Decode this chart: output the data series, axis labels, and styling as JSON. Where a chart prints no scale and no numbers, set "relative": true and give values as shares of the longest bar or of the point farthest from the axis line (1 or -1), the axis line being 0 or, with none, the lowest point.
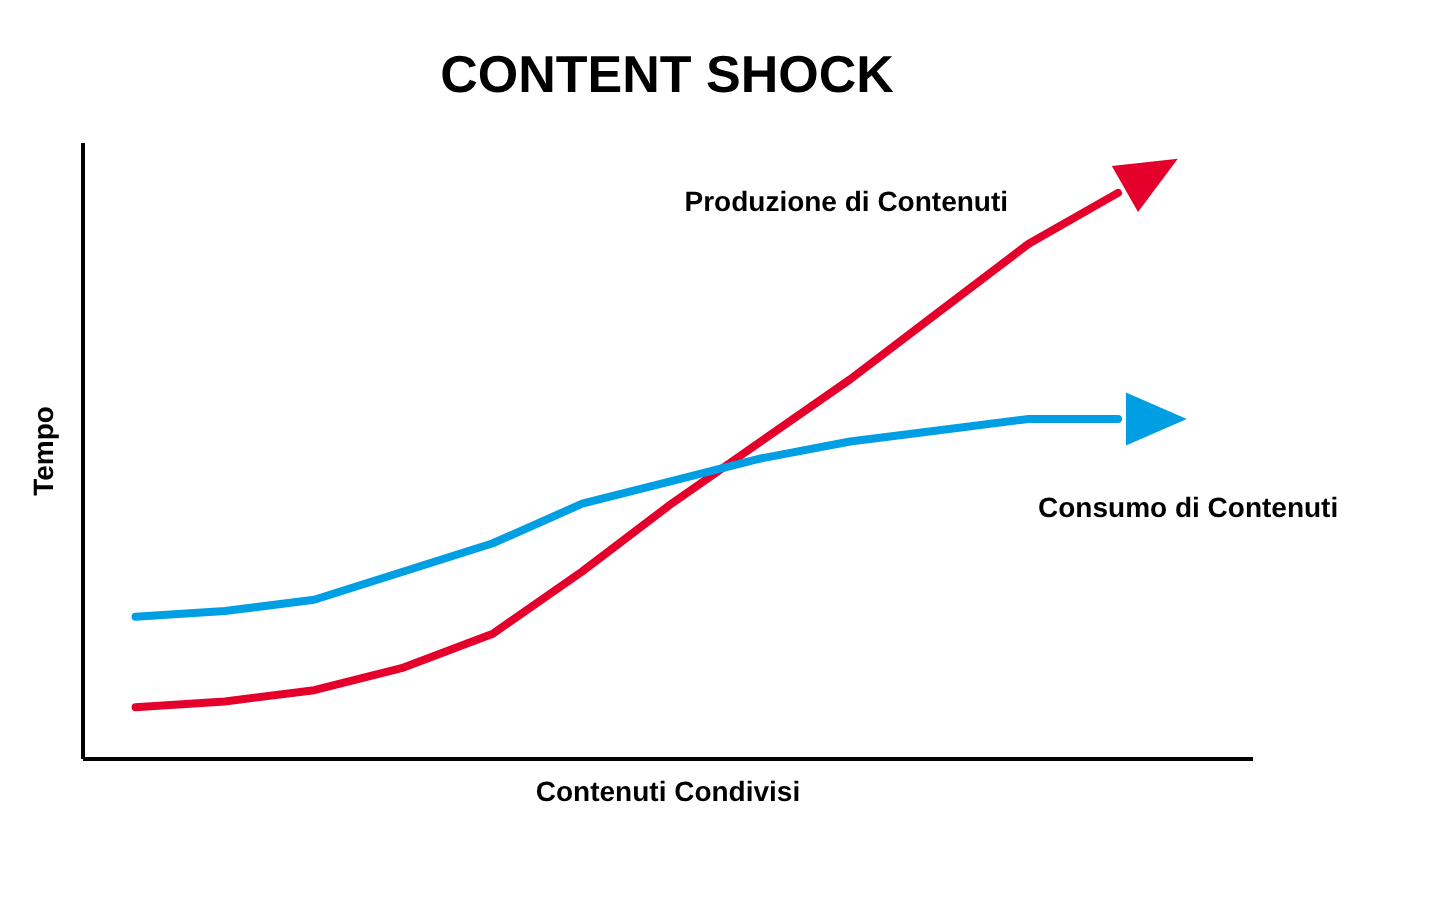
{
  "chart_data": {
    "type": "line",
    "title": "CONTENT SHOCK",
    "xlabel": "Contenuti Condivisi",
    "ylabel": "Tempo",
    "relative": true,
    "legend": false,
    "grid": false,
    "marker": "none",
    "line_style": "solid",
    "categories": [
      null,
      null,
      null,
      null,
      null,
      null,
      null,
      null,
      null,
      null,
      null,
      null
    ],
    "series": [
      {
        "name": "Produzione di Contenuti",
        "color": "#e4002b",
        "values": [
          0.09,
          0.1,
          0.12,
          0.16,
          0.22,
          0.33,
          0.45,
          0.56,
          0.67,
          0.79,
          0.91,
          1.0
        ]
      },
      {
        "name": "Consumo di Contenuti",
        "color": "#009fe3",
        "values": [
          0.25,
          0.26,
          0.28,
          0.33,
          0.38,
          0.45,
          0.49,
          0.53,
          0.56,
          0.58,
          0.6,
          0.6
        ]
      }
    ]
  }
}
